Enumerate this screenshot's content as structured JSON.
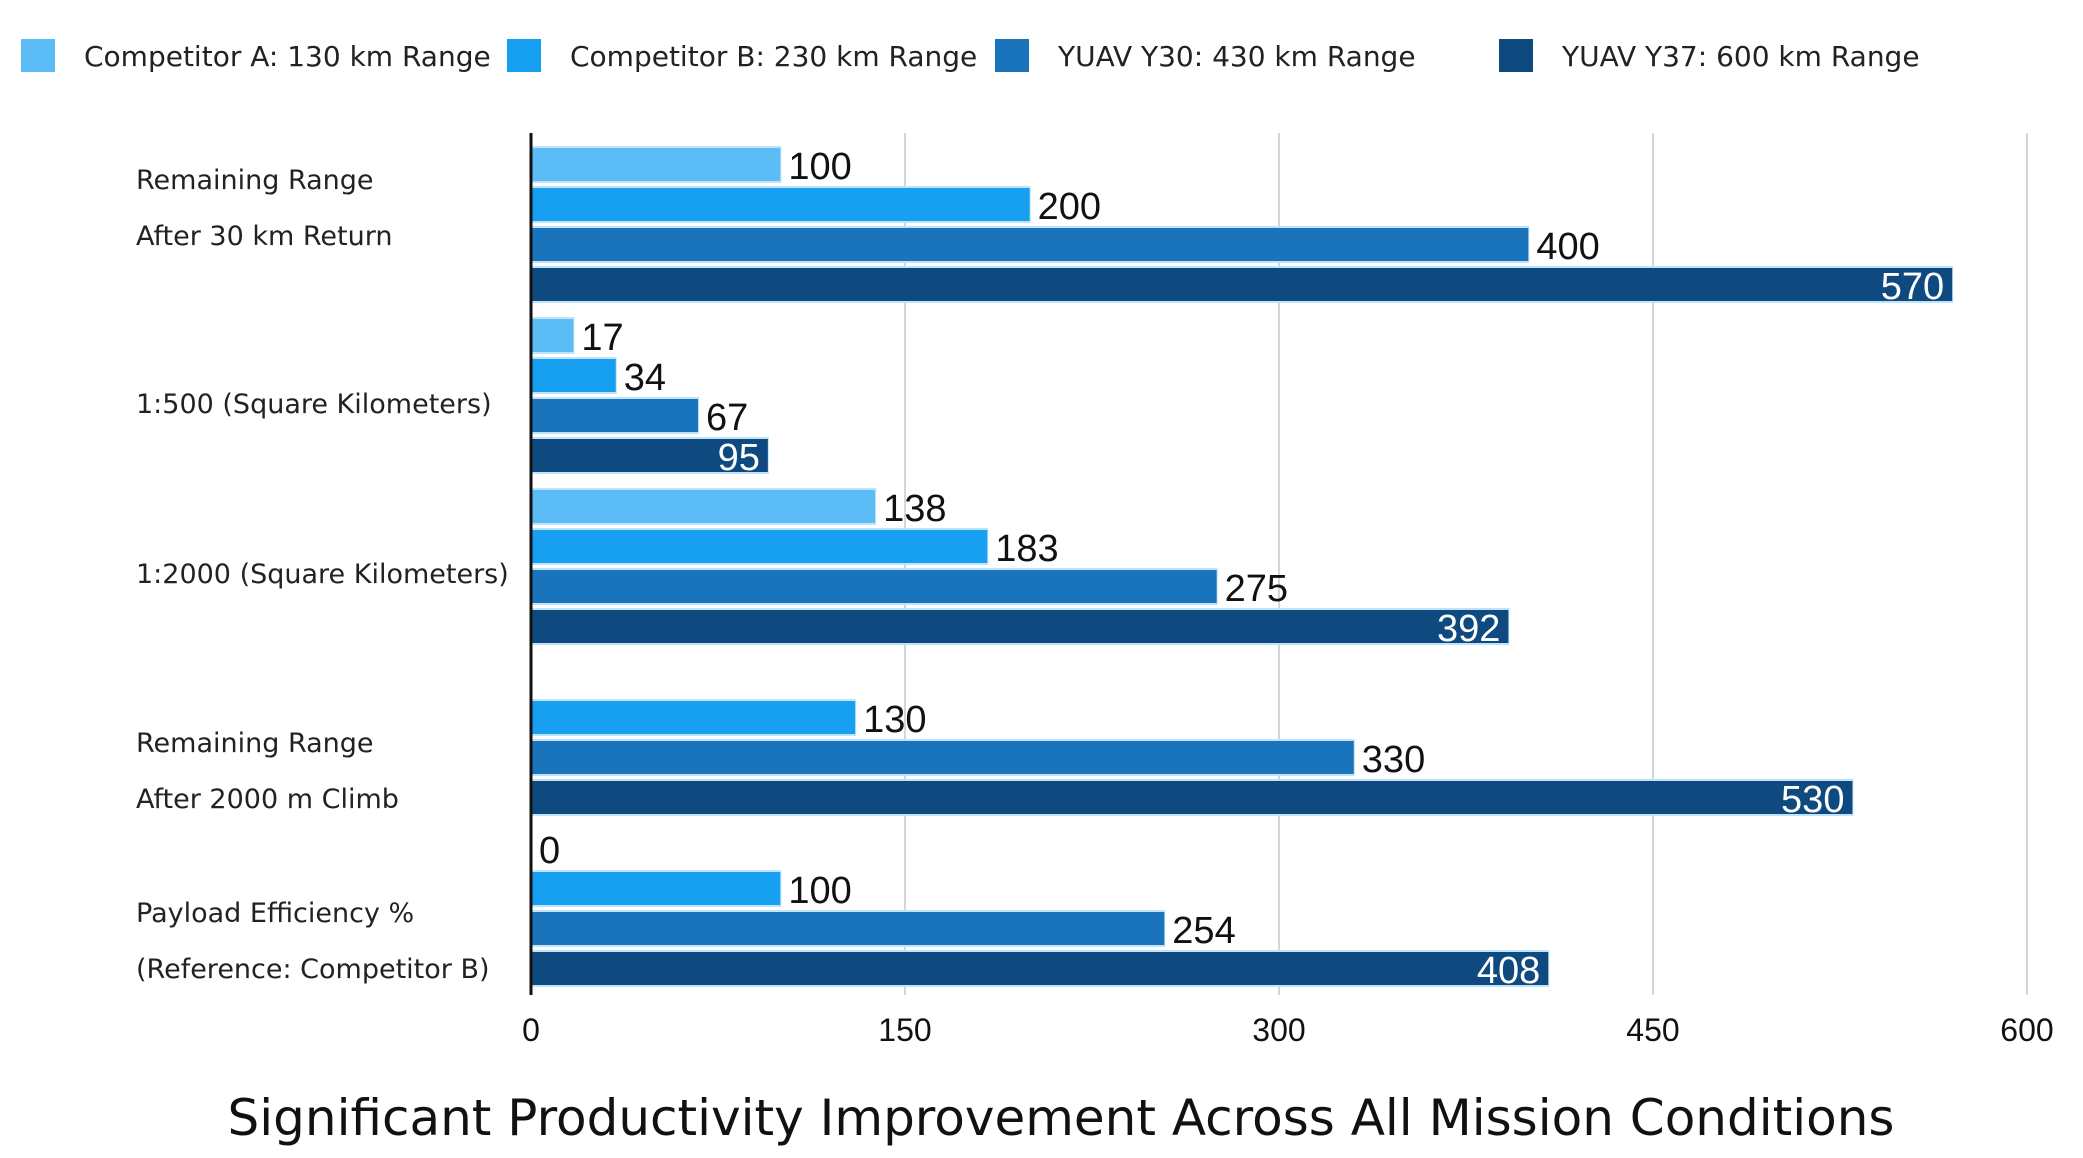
{
  "chart_data": {
    "type": "bar",
    "orientation": "horizontal",
    "title": "Significant Productivity Improvement Across All Mission Conditions",
    "xlabel": "",
    "ylabel": "",
    "xlim": [
      0,
      600
    ],
    "xticks": [
      "0",
      "150",
      "300",
      "450",
      "600"
    ],
    "grid": true,
    "legend_placement": "top",
    "categories": [
      [
        "Remaining Range",
        "After 30 km Return"
      ],
      [
        "1:500 (Square Kilometers)"
      ],
      [
        "1:2000 (Square Kilometers)"
      ],
      [
        "Remaining Range",
        "After 2000 m Climb"
      ],
      [
        "Payload Efficiency %",
        "(Reference: Competitor B)"
      ]
    ],
    "series": [
      {
        "name": "Competitor A:  130 km Range",
        "color": "#5cbdf6",
        "values": [
          100,
          17,
          138,
          null,
          0
        ]
      },
      {
        "name": "Competitor B:  230 km Range",
        "color": "#17a0f2",
        "values": [
          200,
          34,
          183,
          130,
          100
        ]
      },
      {
        "name": "YUAV Y30:  430 km Range",
        "color": "#1a74bc",
        "values": [
          400,
          67,
          275,
          330,
          254
        ]
      },
      {
        "name": "YUAV Y37:  600 km Range",
        "color": "#0e4a7f",
        "values": [
          570,
          95,
          392,
          530,
          408
        ]
      }
    ]
  }
}
